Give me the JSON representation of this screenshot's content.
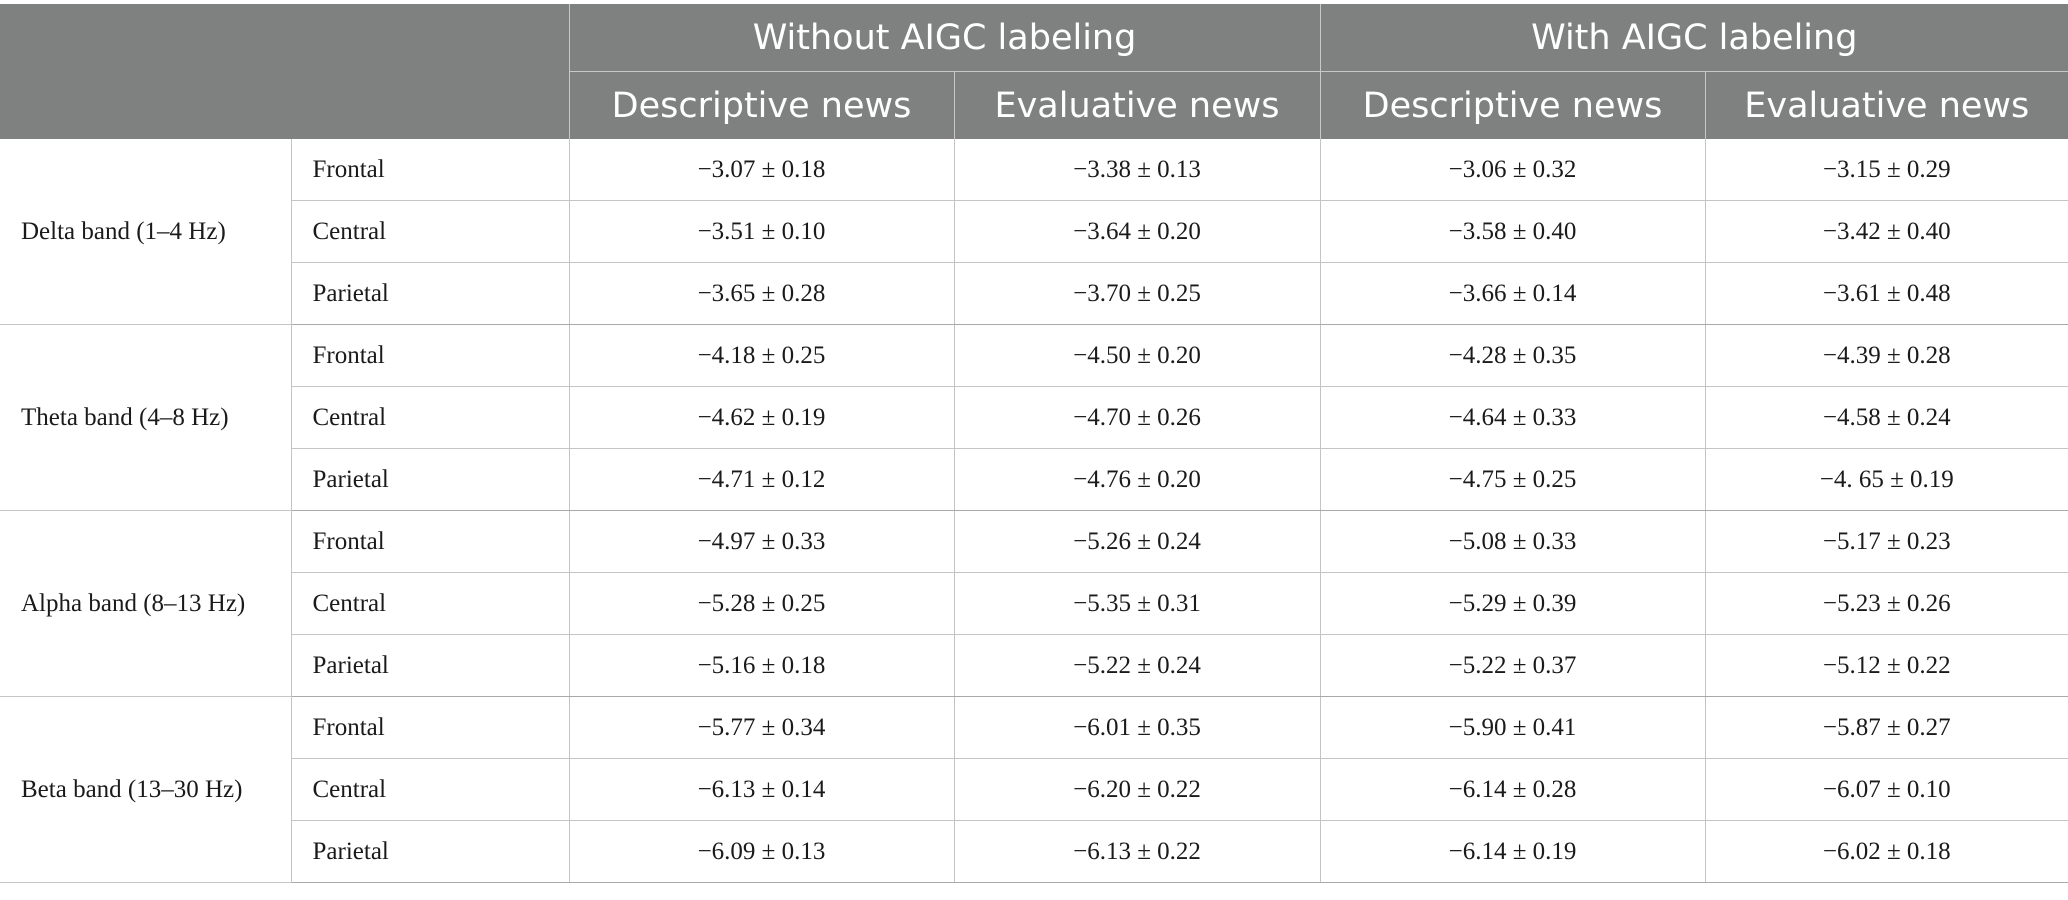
{
  "header": {
    "group_without": "Without AIGC labeling",
    "group_with": "With AIGC labeling",
    "columns": [
      "Descriptive news",
      "Evaluative news",
      "Descriptive news",
      "Evaluative news"
    ]
  },
  "bands": [
    {
      "label": "Delta band (1–4 Hz)",
      "rows": [
        {
          "region": "Frontal",
          "values": [
            "−3.07 ± 0.18",
            "−3.38 ± 0.13",
            "−3.06 ± 0.32",
            "−3.15 ± 0.29"
          ]
        },
        {
          "region": "Central",
          "values": [
            "−3.51 ± 0.10",
            "−3.64 ± 0.20",
            "−3.58 ± 0.40",
            "−3.42 ± 0.40"
          ]
        },
        {
          "region": "Parietal",
          "values": [
            "−3.65 ± 0.28",
            "−3.70 ± 0.25",
            "−3.66 ± 0.14",
            "−3.61 ± 0.48"
          ]
        }
      ]
    },
    {
      "label": "Theta band (4–8 Hz)",
      "rows": [
        {
          "region": "Frontal",
          "values": [
            "−4.18 ± 0.25",
            "−4.50 ± 0.20",
            "−4.28 ± 0.35",
            "−4.39 ± 0.28"
          ]
        },
        {
          "region": "Central",
          "values": [
            "−4.62 ± 0.19",
            "−4.70 ± 0.26",
            "−4.64 ± 0.33",
            "−4.58 ± 0.24"
          ]
        },
        {
          "region": "Parietal",
          "values": [
            "−4.71 ± 0.12",
            "−4.76 ± 0.20",
            "−4.75 ± 0.25",
            "−4. 65 ± 0.19"
          ]
        }
      ]
    },
    {
      "label": "Alpha band (8–13 Hz)",
      "rows": [
        {
          "region": "Frontal",
          "values": [
            "−4.97 ± 0.33",
            "−5.26 ± 0.24",
            "−5.08 ± 0.33",
            "−5.17 ± 0.23"
          ]
        },
        {
          "region": "Central",
          "values": [
            "−5.28 ± 0.25",
            "−5.35 ± 0.31",
            "−5.29 ± 0.39",
            "−5.23 ± 0.26"
          ]
        },
        {
          "region": "Parietal",
          "values": [
            "−5.16 ± 0.18",
            "−5.22 ± 0.24",
            "−5.22 ± 0.37",
            "−5.12 ± 0.22"
          ]
        }
      ]
    },
    {
      "label": "Beta band (13–30 Hz)",
      "rows": [
        {
          "region": "Frontal",
          "values": [
            "−5.77 ± 0.34",
            "−6.01 ± 0.35",
            "−5.90 ± 0.41",
            "−5.87 ± 0.27"
          ]
        },
        {
          "region": "Central",
          "values": [
            "−6.13 ± 0.14",
            "−6.20 ± 0.22",
            "−6.14 ± 0.28",
            "−6.07 ± 0.10"
          ]
        },
        {
          "region": "Parietal",
          "values": [
            "−6.09 ± 0.13",
            "−6.13 ± 0.22",
            "−6.14 ± 0.19",
            "−6.02 ± 0.18"
          ]
        }
      ]
    }
  ]
}
